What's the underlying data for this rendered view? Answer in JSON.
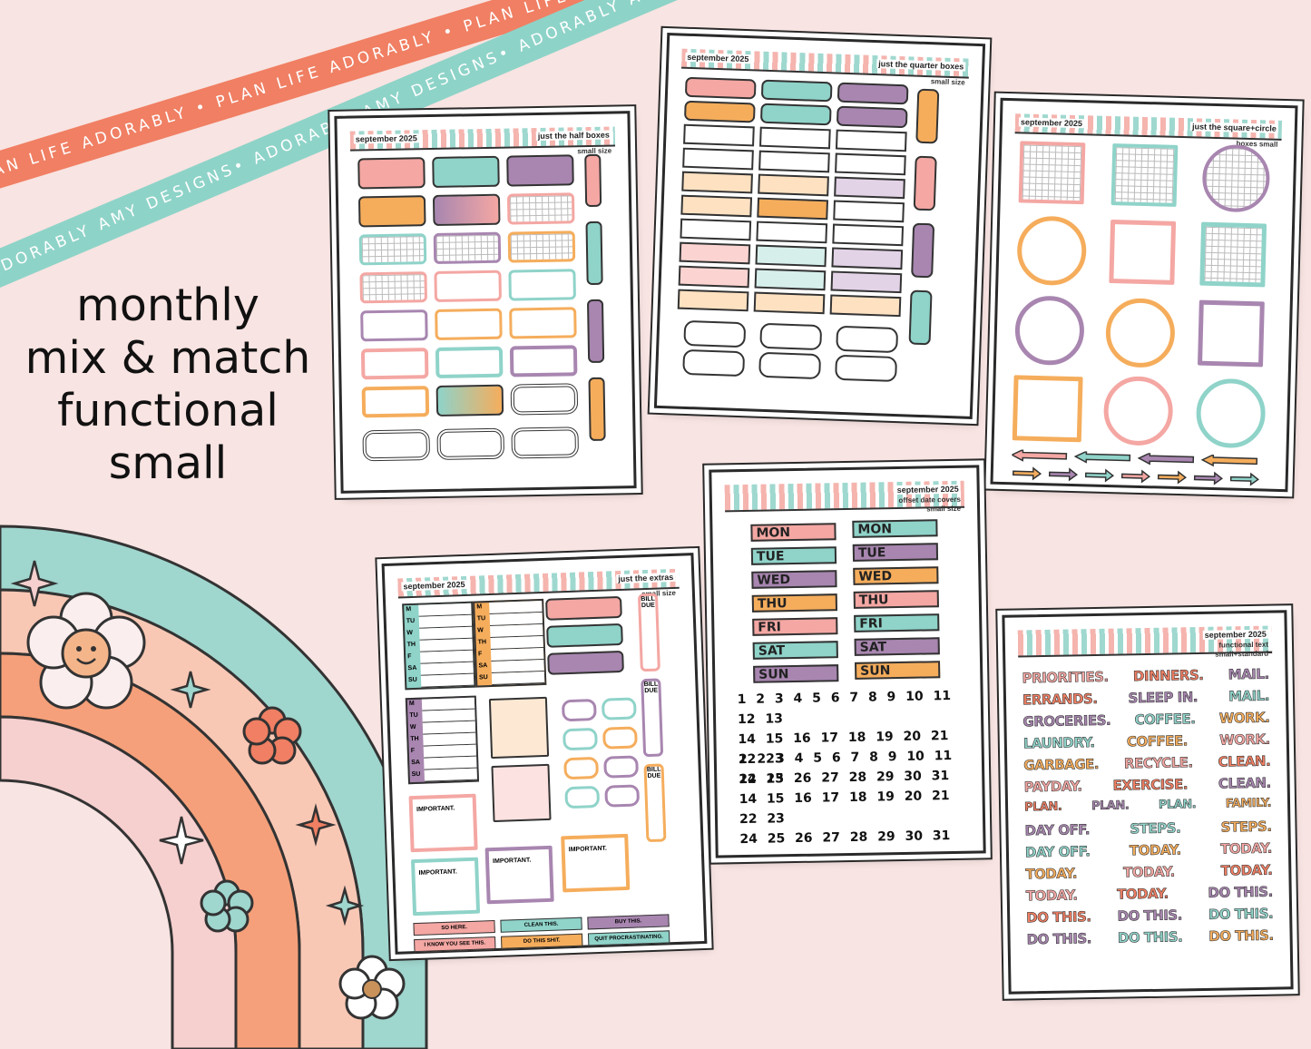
{
  "ribbons": {
    "top": "PLAN LIFE ADORABLY • PLAN LIFE ADORABLY • PLAN LIFE ADORABLY",
    "bottom": "ADORABLY AMY DESIGNS• ADORABLY AMY DESIGNS• ADORABLY AMY DESIGNS•"
  },
  "headline": [
    "monthly",
    "mix & match",
    "functional",
    "small"
  ],
  "colors": {
    "pink": "#f4a7a3",
    "teal": "#8fd3c9",
    "purple": "#a886b0",
    "orange": "#f5ad5c",
    "bg": "#f8e4e2",
    "coral": "#f07f63"
  },
  "sheets": {
    "half": {
      "month": "september 2025",
      "title": "just the half boxes",
      "size": "small size"
    },
    "quarter": {
      "month": "september 2025",
      "title": "just the quarter boxes",
      "size": "small size"
    },
    "square": {
      "month": "september 2025",
      "title": "just the square+circle",
      "size": "boxes small"
    },
    "extras": {
      "month": "september 2025",
      "title": "just the extras",
      "size": "small size",
      "days": [
        "M",
        "TU",
        "W",
        "TH",
        "F",
        "SA",
        "SU"
      ],
      "important": "IMPORTANT.",
      "bill_due": "BILL DUE",
      "strips": [
        "SO HERE.",
        "CLEAN THIS.",
        "BUY THIS.",
        "I KNOW YOU SEE THIS.",
        "DO THIS SHIT.",
        "QUIT PROCRASTINATING."
      ]
    },
    "date": {
      "month": "september 2025",
      "title": "offset date covers",
      "size": "small size",
      "days": [
        "MON",
        "TUE",
        "WED",
        "THU",
        "FRI",
        "SAT",
        "SUN"
      ],
      "numbers": [
        "1 2 3 4 5 6 7 8 9 10 11 12 13",
        "14 15 16 17 18 19 20 21 22 23",
        "24 25 26 27 28 29 30 31"
      ]
    },
    "text": {
      "month": "september 2025",
      "title": "functional text",
      "size": "small+standard",
      "words": [
        [
          "PRIORITIES.",
          "DINNERS.",
          "MAIL."
        ],
        [
          "ERRANDS.",
          "SLEEP IN.",
          "MAIL."
        ],
        [
          "GROCERIES.",
          "COFFEE.",
          "WORK."
        ],
        [
          "LAUNDRY.",
          "COFFEE.",
          "WORK."
        ],
        [
          "GARBAGE.",
          "RECYCLE.",
          "CLEAN."
        ],
        [
          "PAYDAY.",
          "EXERCISE.",
          "CLEAN."
        ],
        [
          "PLAN.",
          "PLAN.",
          "PLAN.",
          "FAMILY."
        ],
        [
          "DAY OFF.",
          "STEPS.",
          "STEPS."
        ],
        [
          "DAY OFF.",
          "TODAY.",
          "TODAY."
        ],
        [
          "TODAY.",
          "TODAY.",
          "TODAY."
        ],
        [
          "TODAY.",
          "TODAY.",
          "DO THIS."
        ],
        [
          "DO THIS.",
          "DO THIS.",
          "DO THIS."
        ],
        [
          "DO THIS.",
          "DO THIS.",
          "DO THIS."
        ]
      ]
    }
  }
}
